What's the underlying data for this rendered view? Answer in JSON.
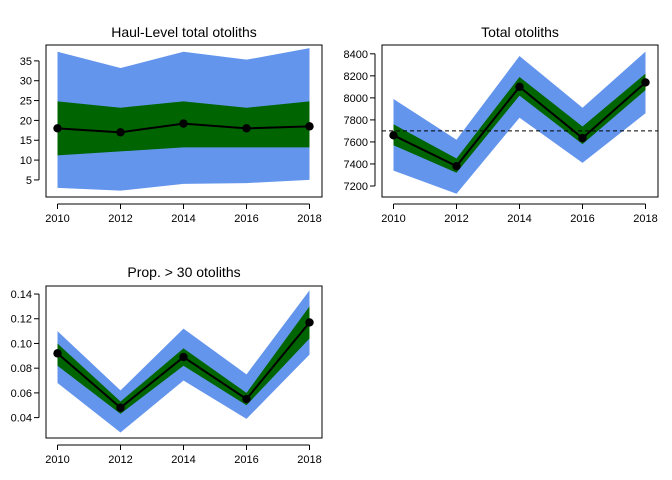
{
  "colors": {
    "outer_band": "#6495ED",
    "inner_band": "#006400",
    "line": "#000000",
    "reference_line": "#000000"
  },
  "chart_data": [
    {
      "type": "area",
      "title": "Haul-Level total otoliths",
      "x": [
        2010,
        2012,
        2014,
        2016,
        2018
      ],
      "xticks": [
        "2010",
        "2012",
        "2014",
        "2016",
        "2018"
      ],
      "xlim": [
        2010,
        2018
      ],
      "yticks": [
        "5",
        "10",
        "15",
        "20",
        "25",
        "30",
        "35"
      ],
      "ylim": [
        0.7,
        39
      ],
      "series": [
        {
          "role": "outer-band",
          "lower": [
            3,
            2.3,
            4,
            4.2,
            5
          ],
          "upper": [
            37.3,
            33.2,
            37.3,
            35.3,
            38.2
          ]
        },
        {
          "role": "inner-band",
          "lower": [
            11.2,
            12.2,
            13.2,
            13.2,
            13.2
          ],
          "upper": [
            24.8,
            23.2,
            24.8,
            23.2,
            24.8
          ]
        },
        {
          "role": "estimate",
          "values": [
            18,
            17,
            19.2,
            18,
            18.5
          ]
        }
      ],
      "reference_line": null
    },
    {
      "type": "area",
      "title": "Total otoliths",
      "x": [
        2010,
        2012,
        2014,
        2016,
        2018
      ],
      "xticks": [
        "2010",
        "2012",
        "2014",
        "2016",
        "2018"
      ],
      "xlim": [
        2010,
        2018
      ],
      "yticks": [
        "7200",
        "7400",
        "7600",
        "7800",
        "8000",
        "8200",
        "8400"
      ],
      "ylim": [
        7100,
        8480
      ],
      "series": [
        {
          "role": "outer-band",
          "lower": [
            7340,
            7130,
            7820,
            7410,
            7860
          ],
          "upper": [
            7990,
            7620,
            8380,
            7910,
            8420
          ]
        },
        {
          "role": "inner-band",
          "lower": [
            7570,
            7320,
            8020,
            7580,
            8070
          ],
          "upper": [
            7760,
            7450,
            8190,
            7740,
            8220
          ]
        },
        {
          "role": "estimate",
          "values": [
            7660,
            7380,
            8100,
            7635,
            8140
          ]
        }
      ],
      "reference_line": 7700
    },
    {
      "type": "area",
      "title": "Prop. > 30 otoliths",
      "x": [
        2010,
        2012,
        2014,
        2016,
        2018
      ],
      "xticks": [
        "2010",
        "2012",
        "2014",
        "2016",
        "2018"
      ],
      "xlim": [
        2010,
        2018
      ],
      "yticks": [
        "0.04",
        "0.06",
        "0.08",
        "0.10",
        "0.12",
        "0.14"
      ],
      "ylim": [
        0.0235,
        0.1465
      ],
      "series": [
        {
          "role": "outer-band",
          "lower": [
            0.068,
            0.028,
            0.07,
            0.039,
            0.091
          ],
          "upper": [
            0.11,
            0.062,
            0.112,
            0.075,
            0.143
          ]
        },
        {
          "role": "inner-band",
          "lower": [
            0.082,
            0.043,
            0.082,
            0.05,
            0.104
          ],
          "upper": [
            0.1,
            0.053,
            0.096,
            0.06,
            0.13
          ]
        },
        {
          "role": "estimate",
          "values": [
            0.092,
            0.048,
            0.089,
            0.055,
            0.117
          ]
        }
      ],
      "reference_line": null
    }
  ]
}
